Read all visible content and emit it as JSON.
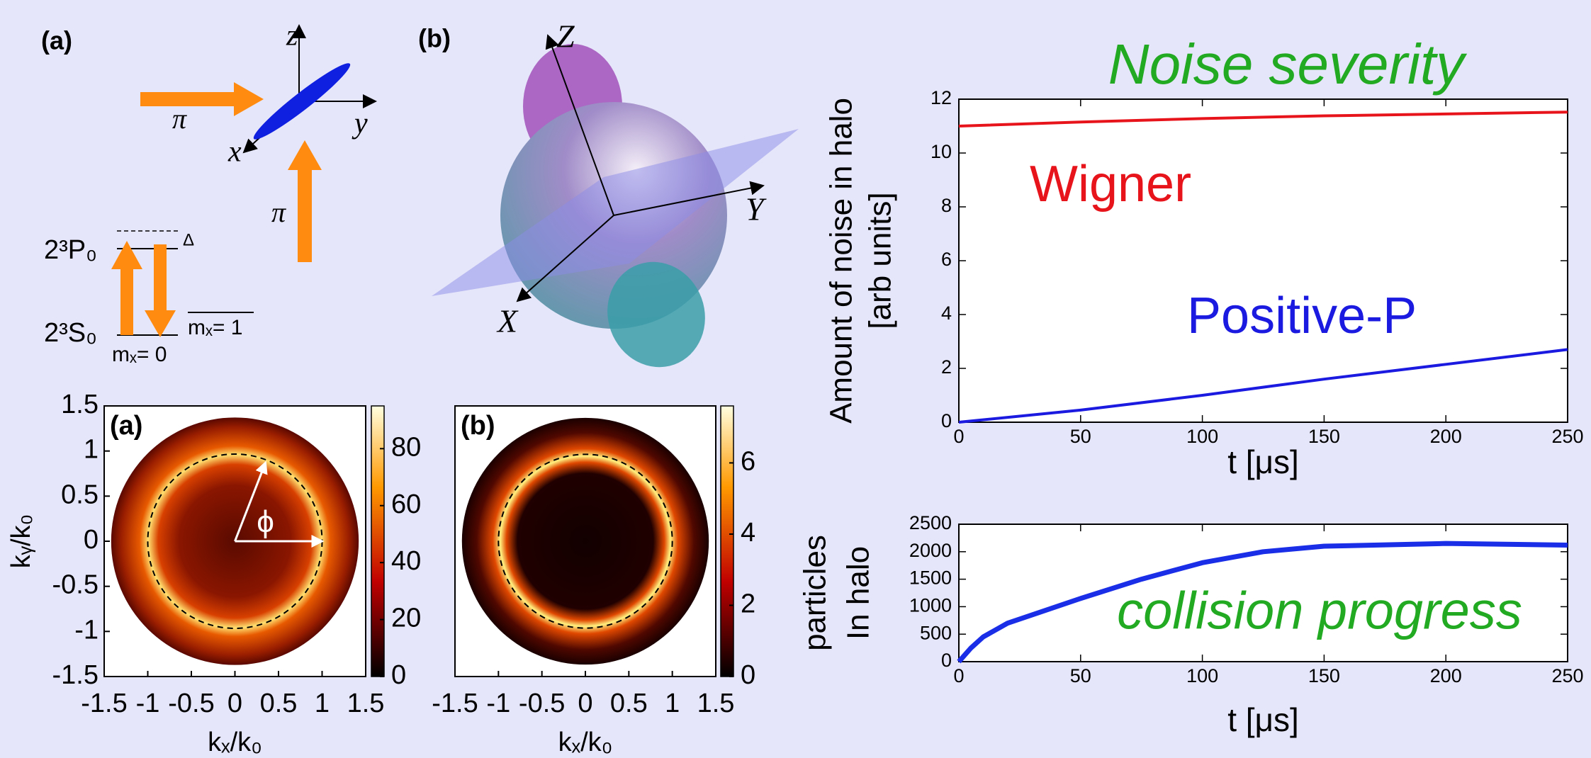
{
  "diagram": {
    "panel_a": "(a)",
    "axis_z": "z",
    "axis_y": "y",
    "axis_x": "x",
    "beam_1": "π",
    "beam_2": "π",
    "level_upper": "2³P₀",
    "level_lower": "2³S₀",
    "detuning": "Δ",
    "state_0": "mₓ= 0",
    "state_1": "mₓ= 1",
    "panel_b": "(b)",
    "sphere_z": "Z",
    "sphere_y": "Y",
    "sphere_x": "X"
  },
  "chart_data": [
    {
      "type": "heatmap",
      "panel": "(a)",
      "xlabel": "kₓ/k₀",
      "ylabel": "kᵧ/k₀",
      "xlim": [
        -1.5,
        1.5
      ],
      "ylim": [
        -1.5,
        1.5
      ],
      "xticks": [
        -1.5,
        -1,
        -0.5,
        0,
        0.5,
        1,
        1.5
      ],
      "yticks": [
        -1.5,
        -1,
        -0.5,
        0,
        0.5,
        1,
        1.5
      ],
      "colorbar_lim": [
        0,
        95
      ],
      "colorbar_ticks": [
        0,
        20,
        40,
        60,
        80
      ],
      "annotation": "ϕ"
    },
    {
      "type": "heatmap",
      "panel": "(b)",
      "xlabel": "kₓ/k₀",
      "xlim": [
        -1.5,
        1.5
      ],
      "ylim": [
        -1.5,
        1.5
      ],
      "xticks": [
        -1.5,
        -1,
        -0.5,
        0,
        0.5,
        1,
        1.5
      ],
      "colorbar_lim": [
        0,
        7.6
      ],
      "colorbar_ticks": [
        0,
        2,
        4,
        6
      ]
    },
    {
      "type": "line",
      "title": "Noise severity",
      "ylabel": [
        "Amount of noise in halo",
        "[arb units]"
      ],
      "xlabel": "t [μs]",
      "x": [
        0,
        50,
        100,
        150,
        200,
        250
      ],
      "series": [
        {
          "name": "Wigner",
          "color": "#e8141c",
          "values": [
            11.0,
            11.15,
            11.28,
            11.38,
            11.45,
            11.52
          ]
        },
        {
          "name": "Positive-P",
          "color": "#1a1ae0",
          "values": [
            0,
            0.45,
            1.0,
            1.6,
            2.15,
            2.7
          ]
        }
      ],
      "xlim": [
        0,
        250
      ],
      "ylim": [
        0,
        12
      ],
      "xticks": [
        0,
        50,
        100,
        150,
        200,
        250
      ],
      "yticks": [
        0,
        2,
        4,
        6,
        8,
        10,
        12
      ]
    },
    {
      "type": "line",
      "ylabel": [
        "particles",
        "In halo"
      ],
      "xlabel": "t [μs]",
      "annotation": "collision progress",
      "x": [
        0,
        5,
        10,
        20,
        30,
        50,
        75,
        100,
        125,
        150,
        200,
        250
      ],
      "series": [
        {
          "color": "#1a2ee8",
          "values": [
            0,
            250,
            450,
            700,
            850,
            1150,
            1500,
            1800,
            2000,
            2100,
            2150,
            2120
          ]
        }
      ],
      "xlim": [
        0,
        250
      ],
      "ylim": [
        0,
        2500
      ],
      "xticks": [
        0,
        50,
        100,
        150,
        200,
        250
      ],
      "yticks": [
        0,
        500,
        1000,
        1500,
        2000,
        2500
      ]
    }
  ]
}
